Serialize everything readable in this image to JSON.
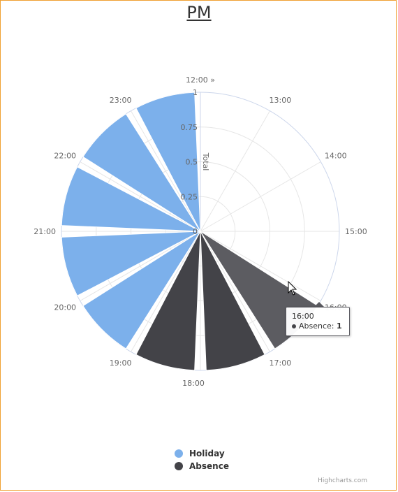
{
  "chart_data": {
    "type": "polar-column",
    "title": "PM",
    "y_axis_title": "Total",
    "y_ticks": [
      "0",
      "0.25",
      "0.5",
      "0.75",
      "1"
    ],
    "ylim": [
      0,
      1
    ],
    "categories": [
      "12:00 »",
      "13:00",
      "14:00",
      "15:00",
      "16:00",
      "17:00",
      "18:00",
      "19:00",
      "20:00",
      "21:00",
      "22:00",
      "23:00"
    ],
    "series": [
      {
        "name": "Holiday",
        "color": "#7cb0eb",
        "values": [
          0,
          0,
          0,
          0,
          0,
          0,
          0,
          1,
          1,
          1,
          1,
          1
        ]
      },
      {
        "name": "Absence",
        "color": "#434348",
        "values": [
          0,
          0,
          0,
          0,
          1,
          1,
          1,
          0,
          0,
          0,
          0,
          0
        ]
      }
    ],
    "hovered": {
      "category": "16:00",
      "series": "Absence",
      "hover_color": "#5c5c61"
    },
    "legend_position": "bottom-center",
    "grid": true
  },
  "tooltip": {
    "header": "16:00",
    "series": "Absence",
    "value": "1"
  },
  "credits": "Highcharts.com"
}
